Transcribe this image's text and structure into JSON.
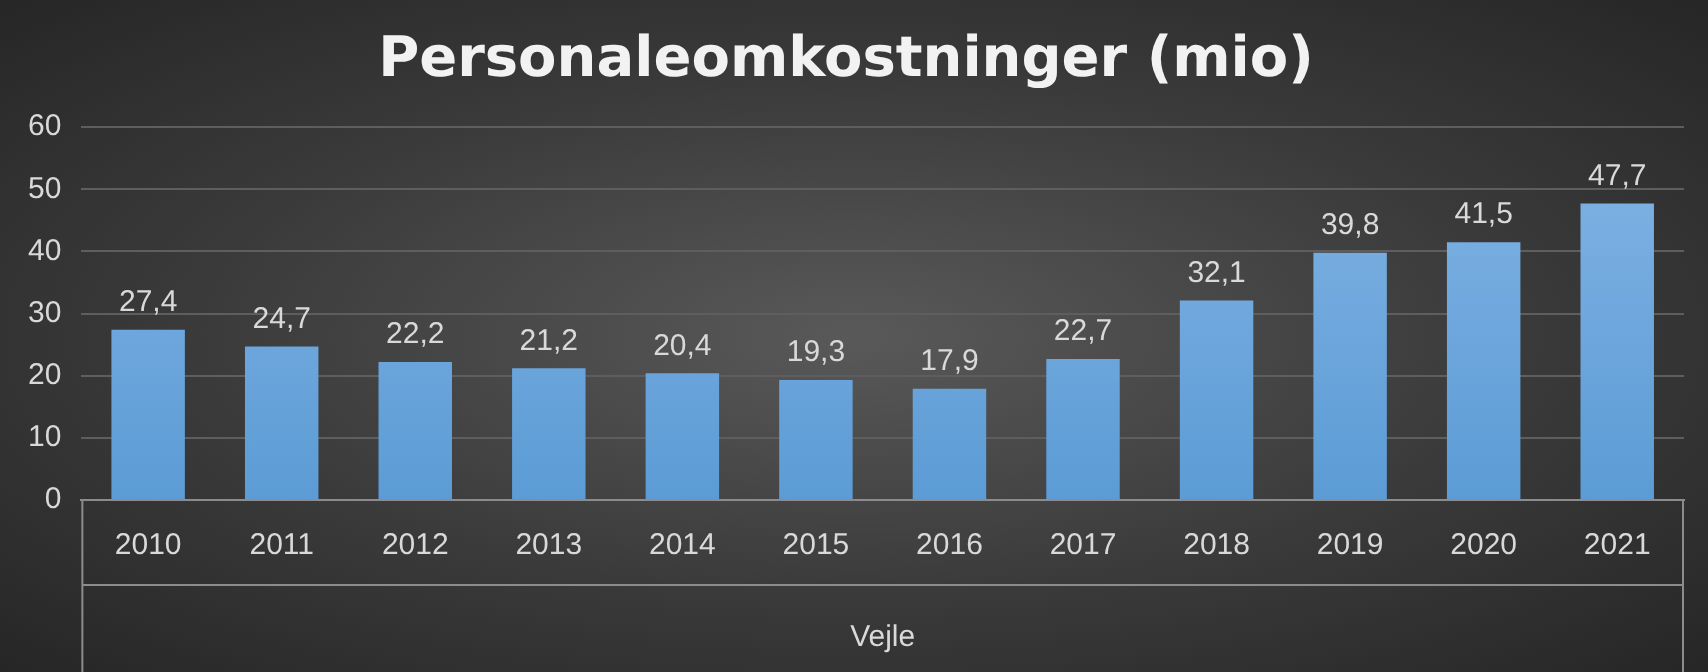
{
  "chart_data": {
    "type": "bar",
    "title": "Personaleomkostninger (mio)",
    "xlabel": "Vejle",
    "categories": [
      "2010",
      "2011",
      "2012",
      "2013",
      "2014",
      "2015",
      "2016",
      "2017",
      "2018",
      "2019",
      "2020",
      "2021"
    ],
    "values": [
      27.4,
      24.7,
      22.2,
      21.2,
      20.4,
      19.3,
      17.9,
      22.7,
      32.1,
      39.8,
      41.5,
      47.7
    ],
    "value_labels": [
      "27,4",
      "24,7",
      "22,2",
      "21,2",
      "20,4",
      "19,3",
      "17,9",
      "22,7",
      "32,1",
      "39,8",
      "41,5",
      "47,7"
    ],
    "color": "#5b9bd5",
    "ylim": [
      0,
      60
    ],
    "yticks": [
      0,
      10,
      20,
      30,
      40,
      50,
      60
    ],
    "grid": "y",
    "legend": false
  }
}
